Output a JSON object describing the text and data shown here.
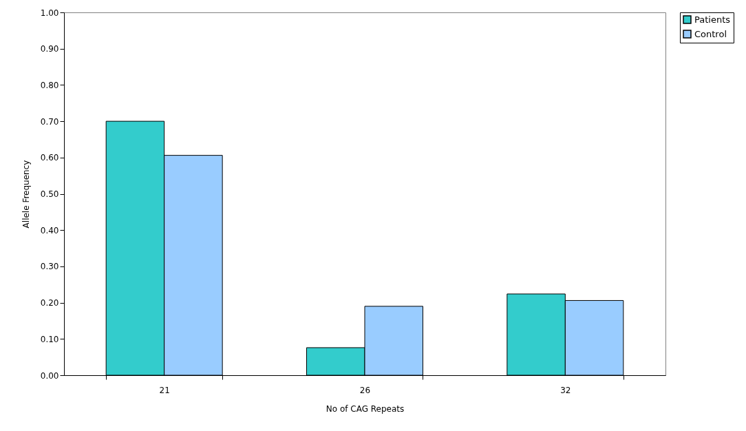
{
  "chart_data": {
    "type": "bar",
    "xlabel": "No of CAG Repeats",
    "ylabel": "Allele Frequency",
    "categories": [
      "21",
      "26",
      "32"
    ],
    "series": [
      {
        "name": "Patients",
        "color": "#33cccc",
        "values": [
          0.7,
          0.076,
          0.224
        ]
      },
      {
        "name": "Control",
        "color": "#99ccff",
        "values": [
          0.606,
          0.19,
          0.206
        ]
      }
    ],
    "ylim": [
      0,
      1
    ],
    "yticks": [
      {
        "value": 0,
        "label": "0.00"
      },
      {
        "value": 0.1,
        "label": "0.10"
      },
      {
        "value": 0.2,
        "label": "0.20"
      },
      {
        "value": 0.3,
        "label": "0.30"
      },
      {
        "value": 0.4,
        "label": "0.40"
      },
      {
        "value": 0.5,
        "label": "0.50"
      },
      {
        "value": 0.6,
        "label": "0.60"
      },
      {
        "value": 0.7,
        "label": "0.70"
      },
      {
        "value": 0.8,
        "label": "0.80"
      },
      {
        "value": 0.9,
        "label": "0.90"
      },
      {
        "value": 1,
        "label": "1.00"
      }
    ],
    "grid": false,
    "legend": "right"
  }
}
